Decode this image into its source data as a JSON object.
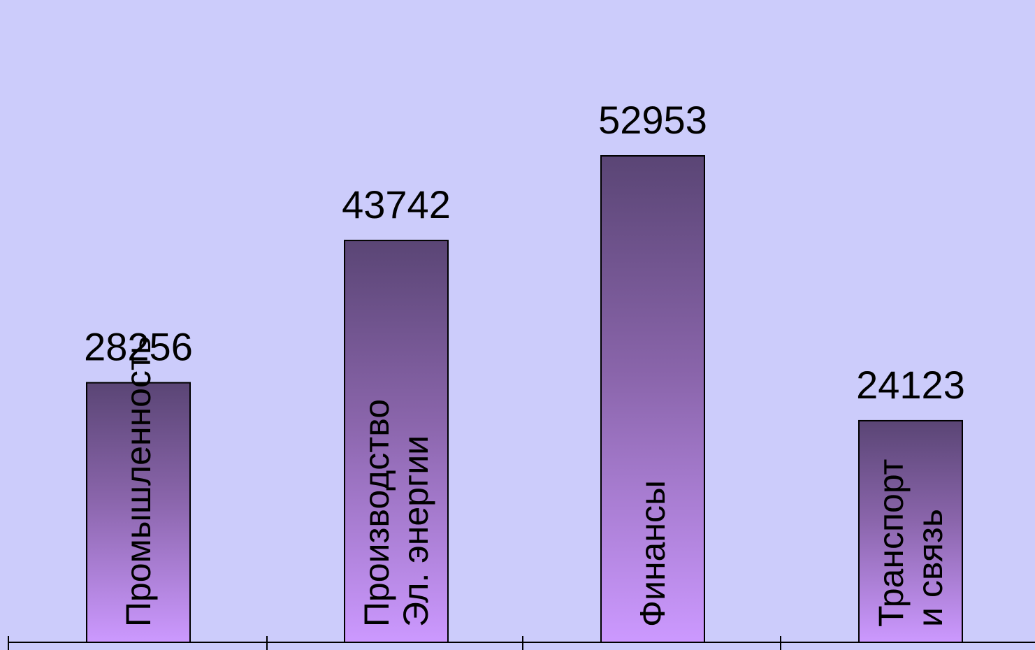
{
  "chart_data": {
    "type": "bar",
    "categories": [
      "Промышленность",
      "Производство Эл. энергии",
      "Финансы",
      "Транспорт и связь"
    ],
    "category_lines": [
      [
        "Промышленность"
      ],
      [
        "Производство",
        "Эл. энергии"
      ],
      [
        "Финансы"
      ],
      [
        "Транспорт",
        "и связь"
      ]
    ],
    "values": [
      28256,
      43742,
      52953,
      24123
    ],
    "value_labels": [
      "28256",
      "43742",
      "52953",
      "24123"
    ],
    "title": "",
    "xlabel": "",
    "ylabel": "",
    "ylim": [
      0,
      60000
    ],
    "grid": false,
    "legend": "none",
    "colors": {
      "background": "#ccccfb",
      "bar_top": "#5a4575",
      "bar_mid": "#8a65ab",
      "bar_bottom": "#cc99ff",
      "outline": "#000000"
    }
  }
}
